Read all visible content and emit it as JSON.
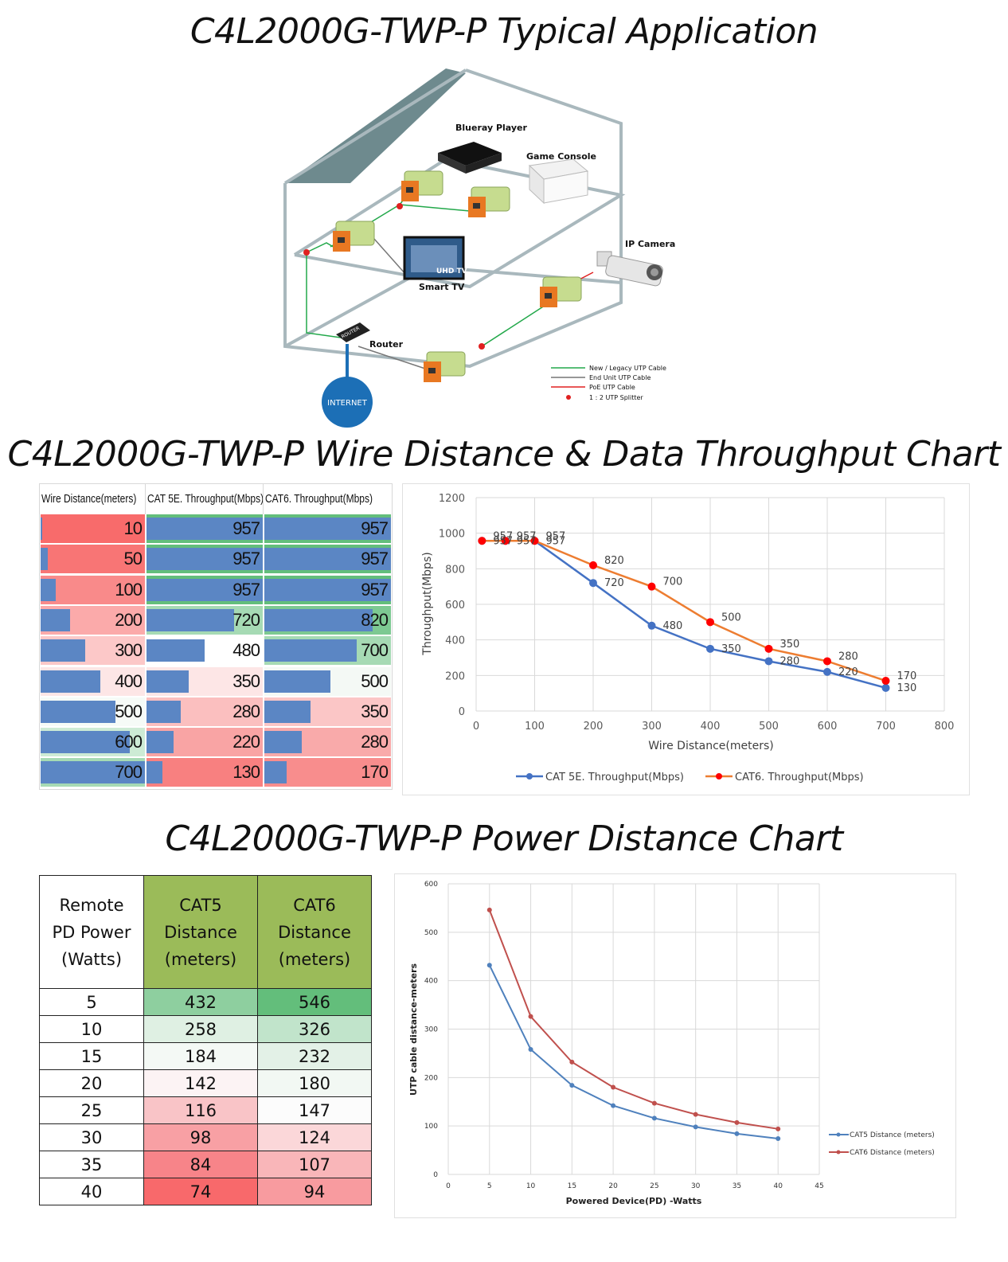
{
  "titles": {
    "application": "C4L2000G-TWP-P Typical Application",
    "throughput": "C4L2000G-TWP-P Wire Distance & Data Throughput Chart",
    "power": "C4L2000G-TWP-P Power Distance Chart"
  },
  "diagram": {
    "labels": {
      "blueray": "Blueray Player",
      "game": "Game Console",
      "ipcam": "IP Camera",
      "smarttv": "Smart TV",
      "uhdtv": "UHD TV",
      "router": "Router",
      "router_device": "ROUTER",
      "internet": "INTERNET"
    },
    "legend": [
      {
        "label": "New / Legacy UTP Cable",
        "color": "#22a84a",
        "kind": "line"
      },
      {
        "label": "End Unit UTP Cable",
        "color": "#777777",
        "kind": "line"
      },
      {
        "label": "PoE UTP Cable",
        "color": "#e02020",
        "kind": "line"
      },
      {
        "label": "1 : 2 UTP Splitter",
        "color": "#e02020",
        "kind": "dot"
      }
    ]
  },
  "throughput_table": {
    "headers": [
      "Wire Distance(meters)",
      "CAT 5E. Throughput(Mbps)",
      "CAT6. Throughput(Mbps)"
    ],
    "rows": [
      {
        "distance": "10",
        "cat5e": "957",
        "cat6": "957"
      },
      {
        "distance": "50",
        "cat5e": "957",
        "cat6": "957"
      },
      {
        "distance": "100",
        "cat5e": "957",
        "cat6": "957"
      },
      {
        "distance": "200",
        "cat5e": "720",
        "cat6": "820"
      },
      {
        "distance": "300",
        "cat5e": "480",
        "cat6": "700"
      },
      {
        "distance": "400",
        "cat5e": "350",
        "cat6": "500"
      },
      {
        "distance": "500",
        "cat5e": "280",
        "cat6": "350"
      },
      {
        "distance": "600",
        "cat5e": "220",
        "cat6": "280"
      },
      {
        "distance": "700",
        "cat5e": "130",
        "cat6": "170"
      }
    ]
  },
  "power_table": {
    "headers": [
      {
        "lines": [
          "Remote",
          "PD Power",
          "(Watts)"
        ]
      },
      {
        "lines": [
          "CAT5",
          "Distance",
          "(meters)"
        ]
      },
      {
        "lines": [
          "CAT6",
          "Distance",
          "(meters)"
        ]
      }
    ],
    "rows": [
      {
        "watts": "5",
        "cat5": "432",
        "cat6": "546",
        "cat5_color": "#8ecf9f",
        "cat6_color": "#63be7b"
      },
      {
        "watts": "10",
        "cat5": "258",
        "cat6": "326",
        "cat5_color": "#dff0e3",
        "cat6_color": "#c1e4cb"
      },
      {
        "watts": "15",
        "cat5": "184",
        "cat6": "232",
        "cat5_color": "#f4f9f5",
        "cat6_color": "#e3f1e7"
      },
      {
        "watts": "20",
        "cat5": "142",
        "cat6": "180",
        "cat5_color": "#fcf3f4",
        "cat6_color": "#f2f8f3"
      },
      {
        "watts": "25",
        "cat5": "116",
        "cat6": "147",
        "cat5_color": "#f9c4c7",
        "cat6_color": "#fcfcfc"
      },
      {
        "watts": "30",
        "cat5": "98",
        "cat6": "124",
        "cat5_color": "#f8a0a4",
        "cat6_color": "#fbd7d9"
      },
      {
        "watts": "35",
        "cat5": "84",
        "cat6": "107",
        "cat5_color": "#f78489",
        "cat6_color": "#f9b6b9"
      },
      {
        "watts": "40",
        "cat5": "74",
        "cat6": "94",
        "cat5_color": "#f8696b",
        "cat6_color": "#f89b9f"
      }
    ]
  },
  "chart_data": [
    {
      "type": "line",
      "title": "",
      "xlabel": "Wire Distance(meters)",
      "ylabel": "Throughput(Mbps)",
      "xlim": [
        0,
        800
      ],
      "ylim": [
        0,
        1200
      ],
      "xticks": [
        0,
        100,
        200,
        300,
        400,
        500,
        600,
        700,
        800
      ],
      "yticks": [
        0,
        200,
        400,
        600,
        800,
        1000,
        1200
      ],
      "grid": true,
      "legend_position": "bottom",
      "x": [
        10,
        50,
        100,
        200,
        300,
        400,
        500,
        600,
        700
      ],
      "series": [
        {
          "name": "CAT 5E. Throughput(Mbps)",
          "color": "#4472c4",
          "values": [
            957,
            957,
            957,
            720,
            480,
            350,
            280,
            220,
            130
          ]
        },
        {
          "name": "CAT6. Throughput(Mbps)",
          "color": "#ed7d31",
          "marker": "#ff0000",
          "values": [
            957,
            957,
            957,
            820,
            700,
            500,
            350,
            280,
            170
          ]
        }
      ],
      "data_labels": true
    },
    {
      "type": "line",
      "title": "",
      "xlabel": "Powered Device(PD) -Watts",
      "ylabel": "UTP cable distance-meters",
      "xlim": [
        0,
        45
      ],
      "ylim": [
        0,
        600
      ],
      "xticks": [
        0,
        5,
        10,
        15,
        20,
        25,
        30,
        35,
        40,
        45
      ],
      "yticks": [
        0,
        100,
        200,
        300,
        400,
        500,
        600
      ],
      "grid": true,
      "legend_position": "right",
      "x": [
        5,
        10,
        15,
        20,
        25,
        30,
        35,
        40
      ],
      "series": [
        {
          "name": "CAT5 Distance (meters)",
          "color": "#4f81bd",
          "values": [
            432,
            258,
            184,
            142,
            116,
            98,
            84,
            74
          ]
        },
        {
          "name": "CAT6 Distance (meters)",
          "color": "#c0504d",
          "values": [
            546,
            326,
            232,
            180,
            147,
            124,
            107,
            94
          ]
        }
      ]
    }
  ]
}
